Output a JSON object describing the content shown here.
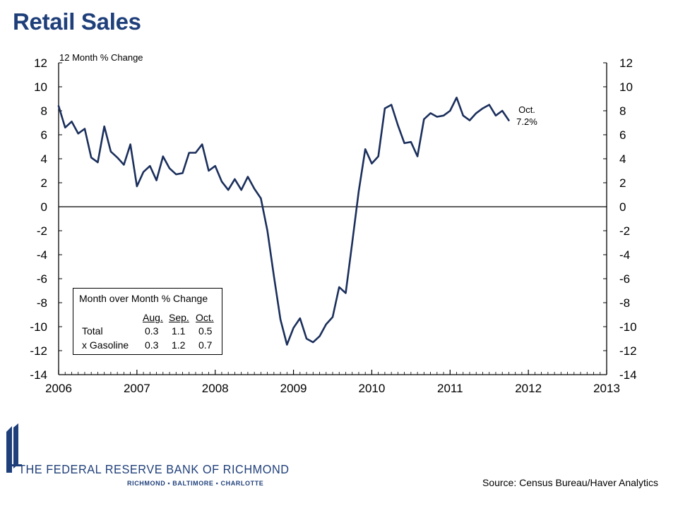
{
  "page": {
    "title": "Retail Sales",
    "source": "Source: Census Bureau/Haver Analytics"
  },
  "logo": {
    "name": "THE FEDERAL RESERVE BANK OF RICHMOND",
    "cities": "RICHMOND ▪ BALTIMORE ▪ CHARLOTTE"
  },
  "chart_data": {
    "type": "line",
    "title": "Retail Sales",
    "ylabel": "12 Month % Change",
    "xlim": [
      2006,
      2013
    ],
    "ylim": [
      -14,
      12
    ],
    "yticks": [
      12,
      10,
      8,
      6,
      4,
      2,
      0,
      -2,
      -4,
      -6,
      -8,
      -10,
      -12,
      -14
    ],
    "xticks": [
      2006,
      2007,
      2008,
      2009,
      2010,
      2011,
      2012,
      2013
    ],
    "grid": false,
    "zero_line": true,
    "series": [
      {
        "color": "#1b2f5c",
        "x_start": "2006-01",
        "frequency": "monthly",
        "values": [
          8.4,
          6.6,
          7.1,
          6.1,
          6.5,
          4.1,
          3.7,
          6.7,
          4.6,
          4.1,
          3.5,
          5.2,
          1.7,
          2.9,
          3.4,
          2.2,
          4.2,
          3.2,
          2.7,
          2.8,
          4.5,
          4.5,
          5.2,
          3.0,
          3.4,
          2.1,
          1.4,
          2.3,
          1.4,
          2.5,
          1.5,
          0.7,
          -2.0,
          -5.8,
          -9.4,
          -11.5,
          -10.1,
          -9.3,
          -11.0,
          -11.3,
          -10.8,
          -9.8,
          -9.2,
          -6.7,
          -7.2,
          -3.0,
          1.3,
          4.8,
          3.6,
          4.2,
          8.2,
          8.5,
          6.8,
          5.3,
          5.4,
          4.2,
          7.3,
          7.8,
          7.5,
          7.6,
          8.0,
          9.1,
          7.6,
          7.2,
          7.8,
          8.2,
          8.5,
          7.6,
          8.0,
          7.2
        ]
      }
    ],
    "annotation": {
      "line1": "Oct.",
      "line2": "7.2%"
    }
  },
  "inset": {
    "title": "Month over Month % Change",
    "columns": [
      "Aug.",
      "Sep.",
      "Oct."
    ],
    "rows": [
      {
        "label": "Total",
        "values": [
          "0.3",
          "1.1",
          "0.5"
        ]
      },
      {
        "label": "x Gasoline",
        "values": [
          "0.3",
          "1.2",
          "0.7"
        ]
      }
    ]
  },
  "colors": {
    "title": "#1f3f7a",
    "line": "#1b2f5c",
    "axis": "#000000"
  }
}
